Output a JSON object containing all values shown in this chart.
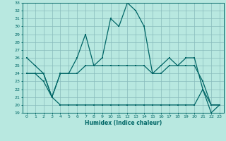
{
  "xlabel": "Humidex (Indice chaleur)",
  "x": [
    0,
    1,
    2,
    3,
    4,
    5,
    6,
    7,
    8,
    9,
    10,
    11,
    12,
    13,
    14,
    15,
    16,
    17,
    18,
    19,
    20,
    21,
    22,
    23
  ],
  "line1": [
    26,
    25,
    24,
    21,
    24,
    24,
    26,
    29,
    25,
    26,
    31,
    30,
    33,
    32,
    30,
    24,
    25,
    26,
    25,
    26,
    26,
    22,
    20,
    20
  ],
  "line2": [
    24,
    24,
    24,
    21,
    24,
    24,
    24,
    25,
    25,
    25,
    25,
    25,
    25,
    25,
    25,
    24,
    24,
    25,
    25,
    25,
    25,
    23,
    20,
    20
  ],
  "line3": [
    24,
    24,
    23,
    21,
    20,
    20,
    20,
    20,
    20,
    20,
    20,
    20,
    20,
    20,
    20,
    20,
    20,
    20,
    20,
    20,
    20,
    22,
    19,
    20
  ],
  "ylim": [
    19,
    33
  ],
  "yticks": [
    19,
    20,
    21,
    22,
    23,
    24,
    25,
    26,
    27,
    28,
    29,
    30,
    31,
    32,
    33
  ],
  "color": "#006666",
  "bg_color": "#b8e8e0",
  "grid_color": "#88bbbb"
}
